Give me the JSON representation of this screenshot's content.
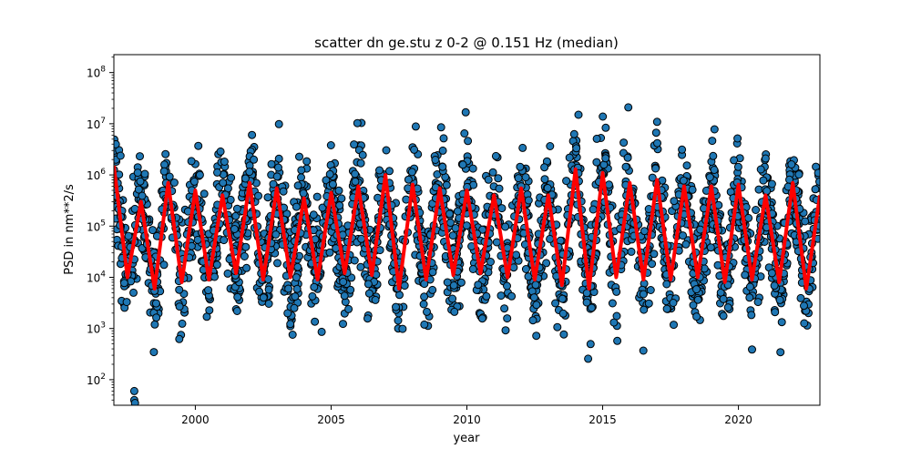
{
  "chart_data": {
    "type": "scatter",
    "title": "scatter dn ge.stu z 0-2 @ 0.151 Hz (median)",
    "xlabel": "year",
    "ylabel": "PSD in nm**2/s",
    "xlim": [
      1997.0,
      2023.0
    ],
    "ylim_log10": [
      1.5,
      8.35
    ],
    "yscale": "log",
    "x_ticks": [
      2000,
      2005,
      2010,
      2015,
      2020
    ],
    "x_tick_labels": [
      "2000",
      "2005",
      "2010",
      "2015",
      "2020"
    ],
    "y_ticks_log10": [
      2,
      3,
      4,
      5,
      6,
      7,
      8
    ],
    "y_tick_labels": [
      "10",
      "10",
      "10",
      "10",
      "10",
      "10",
      "10"
    ],
    "y_tick_exponents": [
      "2",
      "3",
      "4",
      "5",
      "6",
      "7",
      "8"
    ],
    "grid": false,
    "legend": "none",
    "colors": {
      "scatter_face": "#1f77b4",
      "scatter_edge": "#000000",
      "median_line": "#ff0000"
    },
    "series": [
      {
        "kind": "median_line",
        "x": [
          1997.0,
          1997.5,
          1998.0,
          1998.5,
          1999.0,
          1999.5,
          2000.0,
          2000.5,
          2001.0,
          2001.5,
          2002.0,
          2002.5,
          2003.0,
          2003.5,
          2004.0,
          2004.5,
          2005.0,
          2005.5,
          2006.0,
          2006.5,
          2007.0,
          2007.5,
          2008.0,
          2008.5,
          2009.0,
          2009.5,
          2010.0,
          2010.5,
          2011.0,
          2011.5,
          2012.0,
          2012.5,
          2013.0,
          2013.5,
          2014.0,
          2014.5,
          2015.0,
          2015.5,
          2016.0,
          2016.5,
          2017.0,
          2017.5,
          2018.0,
          2018.5,
          2019.0,
          2019.5,
          2020.0,
          2020.5,
          2021.0,
          2021.5,
          2022.0,
          2022.5,
          2023.0
        ],
        "y": [
          1500000,
          10000,
          300000,
          6000,
          700000,
          8000,
          500000,
          9000,
          400000,
          12000,
          700000,
          9000,
          550000,
          10000,
          350000,
          9000,
          450000,
          12000,
          600000,
          11000,
          1000000,
          6000,
          650000,
          9000,
          550000,
          11000,
          500000,
          12000,
          400000,
          10000,
          550000,
          9000,
          400000,
          7000,
          1300000,
          6000,
          1100000,
          10000,
          700000,
          9000,
          800000,
          9000,
          600000,
          10000,
          600000,
          8000,
          650000,
          9000,
          400000,
          8000,
          700000,
          6000,
          400000
        ]
      }
    ],
    "scatter": {
      "period_years": 1.0,
      "peak_phase_years": 0.0,
      "outliers": [
        {
          "x": 1997.75,
          "y": 60
        },
        {
          "x": 1997.75,
          "y": 40
        },
        {
          "x": 1997.78,
          "y": 35
        }
      ]
    }
  }
}
